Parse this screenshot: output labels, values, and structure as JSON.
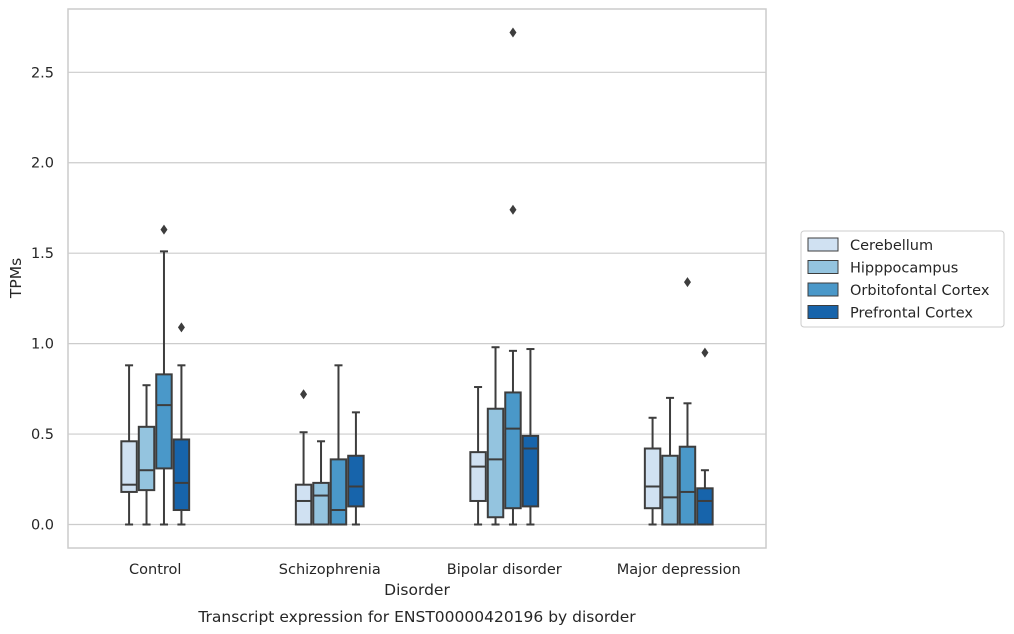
{
  "chart_data": {
    "type": "box",
    "caption": "Transcript expression for ENST00000420196 by disorder",
    "xlabel": "Disorder",
    "ylabel": "TPMs",
    "ylim": [
      -0.13,
      2.85
    ],
    "yticks": [
      0.0,
      0.5,
      1.0,
      1.5,
      2.0,
      2.5
    ],
    "ytick_labels": [
      "0.0",
      "0.5",
      "1.0",
      "1.5",
      "2.0",
      "2.5"
    ],
    "categories": [
      "Control",
      "Schizophrenia",
      "Bipolar disorder",
      "Major depression"
    ],
    "grid": "horizontal",
    "legend_position": "right",
    "series": [
      {
        "name": "Cerebellum",
        "color": "#d0e1f2",
        "boxes": [
          {
            "whisker_low": 0.0,
            "q1": 0.18,
            "median": 0.22,
            "q3": 0.46,
            "whisker_high": 0.88,
            "outliers": []
          },
          {
            "whisker_low": 0.0,
            "q1": 0.0,
            "median": 0.13,
            "q3": 0.22,
            "whisker_high": 0.51,
            "outliers": [
              0.72
            ]
          },
          {
            "whisker_low": 0.0,
            "q1": 0.13,
            "median": 0.32,
            "q3": 0.4,
            "whisker_high": 0.76,
            "outliers": []
          },
          {
            "whisker_low": 0.0,
            "q1": 0.09,
            "median": 0.21,
            "q3": 0.42,
            "whisker_high": 0.59,
            "outliers": []
          }
        ]
      },
      {
        "name": "Hipppocampus",
        "color": "#94c4df",
        "boxes": [
          {
            "whisker_low": 0.0,
            "q1": 0.19,
            "median": 0.3,
            "q3": 0.54,
            "whisker_high": 0.77,
            "outliers": []
          },
          {
            "whisker_low": 0.0,
            "q1": 0.0,
            "median": 0.16,
            "q3": 0.23,
            "whisker_high": 0.46,
            "outliers": []
          },
          {
            "whisker_low": 0.0,
            "q1": 0.04,
            "median": 0.36,
            "q3": 0.64,
            "whisker_high": 0.98,
            "outliers": []
          },
          {
            "whisker_low": 0.0,
            "q1": 0.0,
            "median": 0.15,
            "q3": 0.38,
            "whisker_high": 0.7,
            "outliers": []
          }
        ]
      },
      {
        "name": "Orbitofontal Cortex",
        "color": "#4a98c9",
        "boxes": [
          {
            "whisker_low": 0.0,
            "q1": 0.31,
            "median": 0.66,
            "q3": 0.83,
            "whisker_high": 1.51,
            "outliers": [
              1.63
            ]
          },
          {
            "whisker_low": 0.0,
            "q1": 0.0,
            "median": 0.08,
            "q3": 0.36,
            "whisker_high": 0.88,
            "outliers": []
          },
          {
            "whisker_low": 0.0,
            "q1": 0.09,
            "median": 0.53,
            "q3": 0.73,
            "whisker_high": 0.96,
            "outliers": [
              1.74,
              2.72
            ]
          },
          {
            "whisker_low": 0.0,
            "q1": 0.0,
            "median": 0.18,
            "q3": 0.43,
            "whisker_high": 0.67,
            "outliers": [
              1.34
            ]
          }
        ]
      },
      {
        "name": "Prefrontal Cortex",
        "color": "#1764ab",
        "boxes": [
          {
            "whisker_low": 0.0,
            "q1": 0.08,
            "median": 0.23,
            "q3": 0.47,
            "whisker_high": 0.88,
            "outliers": [
              1.09
            ]
          },
          {
            "whisker_low": 0.0,
            "q1": 0.1,
            "median": 0.21,
            "q3": 0.38,
            "whisker_high": 0.62,
            "outliers": []
          },
          {
            "whisker_low": 0.0,
            "q1": 0.1,
            "median": 0.42,
            "q3": 0.49,
            "whisker_high": 0.97,
            "outliers": []
          },
          {
            "whisker_low": 0.0,
            "q1": 0.0,
            "median": 0.13,
            "q3": 0.2,
            "whisker_high": 0.3,
            "outliers": [
              0.95
            ]
          }
        ]
      }
    ]
  }
}
